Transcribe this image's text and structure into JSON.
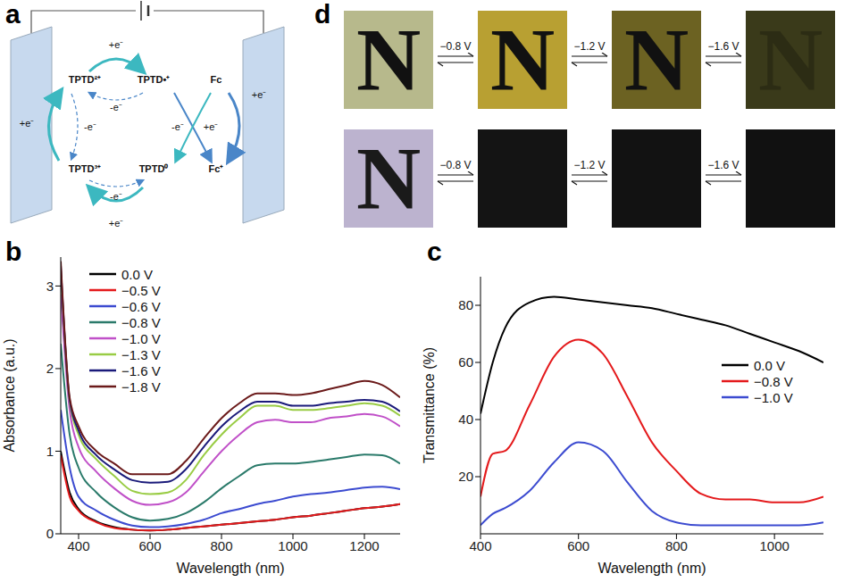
{
  "chart_data": [
    {
      "panel": "b",
      "type": "line",
      "x_label": "Wavelength (nm)",
      "y_label": "Absorbance (a.u.)",
      "x": [
        350,
        375,
        400,
        450,
        500,
        550,
        600,
        650,
        700,
        750,
        800,
        850,
        900,
        950,
        1000,
        1050,
        1100,
        1150,
        1200,
        1250,
        1300
      ],
      "xlim": [
        350,
        1300
      ],
      "xticks": [
        400,
        600,
        800,
        1000,
        1200
      ],
      "ylim": [
        0,
        3.35
      ],
      "yticks": [
        0,
        1,
        2,
        3
      ],
      "legend": "upper left",
      "series": [
        {
          "name": "0.0 V",
          "color": "#000000",
          "values": [
            1.0,
            0.5,
            0.3,
            0.15,
            0.08,
            0.05,
            0.04,
            0.05,
            0.07,
            0.09,
            0.11,
            0.13,
            0.15,
            0.17,
            0.2,
            0.22,
            0.25,
            0.28,
            0.31,
            0.33,
            0.36
          ]
        },
        {
          "name": "−0.5 V",
          "color": "#e41a1c",
          "values": [
            0.95,
            0.45,
            0.28,
            0.14,
            0.07,
            0.05,
            0.04,
            0.05,
            0.07,
            0.09,
            0.11,
            0.13,
            0.15,
            0.17,
            0.2,
            0.22,
            0.25,
            0.28,
            0.31,
            0.33,
            0.36
          ]
        },
        {
          "name": "−0.6 V",
          "color": "#3c4bd0",
          "values": [
            1.5,
            0.8,
            0.45,
            0.28,
            0.17,
            0.1,
            0.08,
            0.09,
            0.12,
            0.17,
            0.25,
            0.3,
            0.36,
            0.4,
            0.45,
            0.48,
            0.5,
            0.53,
            0.56,
            0.57,
            0.54
          ]
        },
        {
          "name": "−0.8 V",
          "color": "#2a7a6a",
          "values": [
            2.3,
            1.2,
            0.8,
            0.5,
            0.32,
            0.2,
            0.16,
            0.18,
            0.25,
            0.38,
            0.55,
            0.7,
            0.83,
            0.85,
            0.85,
            0.87,
            0.9,
            0.93,
            0.96,
            0.95,
            0.85
          ]
        },
        {
          "name": "−1.0 V",
          "color": "#c050c8",
          "values": [
            2.9,
            1.5,
            1.05,
            0.75,
            0.55,
            0.4,
            0.35,
            0.38,
            0.5,
            0.75,
            1.0,
            1.2,
            1.35,
            1.38,
            1.35,
            1.35,
            1.4,
            1.42,
            1.45,
            1.42,
            1.3
          ]
        },
        {
          "name": "−1.3 V",
          "color": "#99cc44",
          "values": [
            3.2,
            1.6,
            1.2,
            0.9,
            0.7,
            0.52,
            0.48,
            0.5,
            0.65,
            0.95,
            1.2,
            1.4,
            1.55,
            1.55,
            1.5,
            1.5,
            1.52,
            1.55,
            1.58,
            1.55,
            1.43
          ]
        },
        {
          "name": "−1.6 V",
          "color": "#1a1a7a",
          "values": [
            3.25,
            1.62,
            1.25,
            0.95,
            0.78,
            0.65,
            0.62,
            0.63,
            0.78,
            1.05,
            1.3,
            1.48,
            1.6,
            1.6,
            1.55,
            1.55,
            1.58,
            1.6,
            1.62,
            1.6,
            1.48
          ]
        },
        {
          "name": "−1.8 V",
          "color": "#6b1a1a",
          "values": [
            3.3,
            1.65,
            1.3,
            1.0,
            0.85,
            0.72,
            0.72,
            0.72,
            0.88,
            1.15,
            1.4,
            1.58,
            1.7,
            1.7,
            1.68,
            1.7,
            1.75,
            1.8,
            1.85,
            1.8,
            1.65
          ]
        }
      ]
    },
    {
      "panel": "c",
      "type": "line",
      "x_label": "Wavelength (nm)",
      "y_label": "Transmittance (%)",
      "x": [
        400,
        425,
        450,
        500,
        550,
        600,
        650,
        700,
        750,
        800,
        850,
        900,
        950,
        1000,
        1050,
        1100
      ],
      "xlim": [
        400,
        1100
      ],
      "xticks": [
        400,
        600,
        800,
        1000
      ],
      "ylim": [
        0,
        90
      ],
      "yticks": [
        20,
        40,
        60,
        80
      ],
      "legend": "center right",
      "series": [
        {
          "name": "0.0 V",
          "color": "#000000",
          "values": [
            42,
            60,
            72,
            81,
            83,
            82,
            81,
            80,
            79,
            77,
            75,
            73,
            70,
            67,
            64,
            60
          ]
        },
        {
          "name": "−0.8 V",
          "color": "#e41a1c",
          "values": [
            13,
            28,
            29,
            45,
            62,
            68,
            63,
            48,
            32,
            22,
            14,
            12,
            12,
            11,
            11,
            13
          ]
        },
        {
          "name": "−1.0 V",
          "color": "#3c4bd0",
          "values": [
            3,
            7,
            9,
            15,
            25,
            32,
            29,
            18,
            8,
            4,
            3,
            3,
            3,
            3,
            3,
            4
          ]
        }
      ]
    }
  ],
  "diagram": {
    "panel": "a",
    "species": [
      "TPTD²⁺",
      "TPTD•⁺",
      "TPTD³⁺",
      "TPTD⁰",
      "Fc",
      "Fc⁺"
    ],
    "electron_labels": [
      "+e⁻",
      "-e⁻",
      "+e⁻",
      "-e⁻",
      "-e⁻",
      "+e⁻",
      "-e⁻",
      "+e⁻",
      "+e⁻"
    ]
  },
  "photos": {
    "panel": "d",
    "voltages": [
      "−0.8 V",
      "−1.2 V",
      "−1.6 V"
    ],
    "rows": [
      [
        "N",
        "N",
        "N",
        "N"
      ],
      [
        "N",
        null,
        null,
        null
      ]
    ]
  }
}
